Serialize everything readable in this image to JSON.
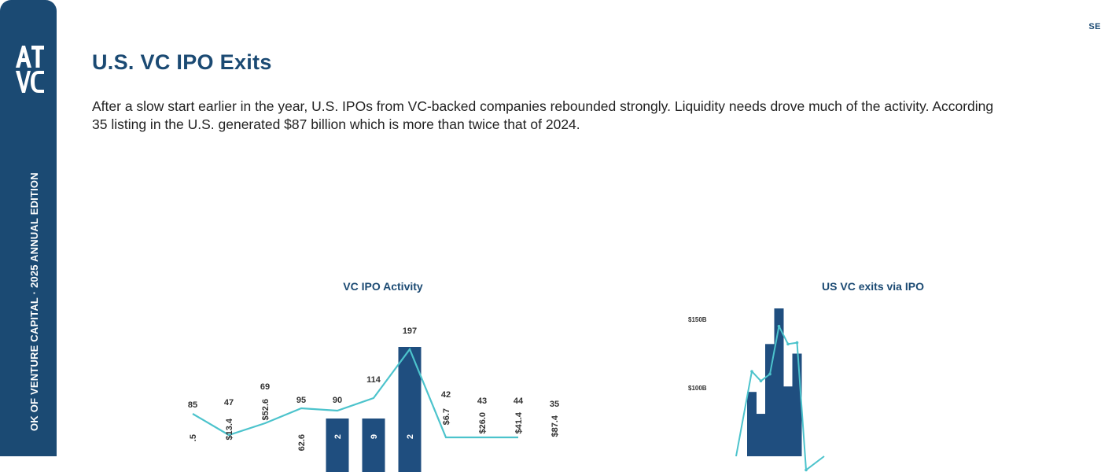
{
  "sidebar": {
    "logo_text": "ATVC",
    "edition_label": "OK OF VENTURE CAPITAL · 2025 ANNUAL EDITION"
  },
  "header": {
    "section_tag": "SE"
  },
  "page": {
    "title": "U.S. VC IPO Exits",
    "intro_line1": "After a slow start earlier in the year, U.S. IPOs from VC-backed companies rebounded strongly. Liquidity needs drove much of the activity. According",
    "intro_line2": "35 listing in the U.S. generated $87 billion which is more than twice that of 2024."
  },
  "colors": {
    "navy": "#1b4a73",
    "bar": "#1f4e7f",
    "line": "#4cc3cc"
  },
  "chart_data": [
    {
      "type": "bar",
      "title": "VC IPO Activity",
      "count_labels": [
        "85",
        "47",
        "69",
        "95",
        "90",
        "114",
        "197",
        "42",
        "43",
        "44",
        "35"
      ],
      "counts": [
        85,
        47,
        69,
        95,
        90,
        114,
        197,
        42,
        43,
        44,
        35
      ],
      "value_labels": [
        ".5",
        "$13.4",
        "$52.6",
        "62.6",
        "2",
        "9",
        "2",
        "$6.7",
        "$26.0",
        "$41.4",
        "$87.4"
      ],
      "bars_visible": [
        false,
        false,
        false,
        false,
        true,
        true,
        true,
        false,
        false,
        false,
        false
      ]
    },
    {
      "type": "bar",
      "title": "US VC exits via IPO",
      "y_tick_labels": [
        "$150B",
        "$100B"
      ],
      "y_ticks": [
        150,
        100
      ],
      "bar_values": [
        97,
        81,
        132,
        158,
        101,
        125,
        40
      ],
      "line_values": [
        112,
        105,
        110,
        145,
        132,
        133,
        40
      ]
    }
  ]
}
